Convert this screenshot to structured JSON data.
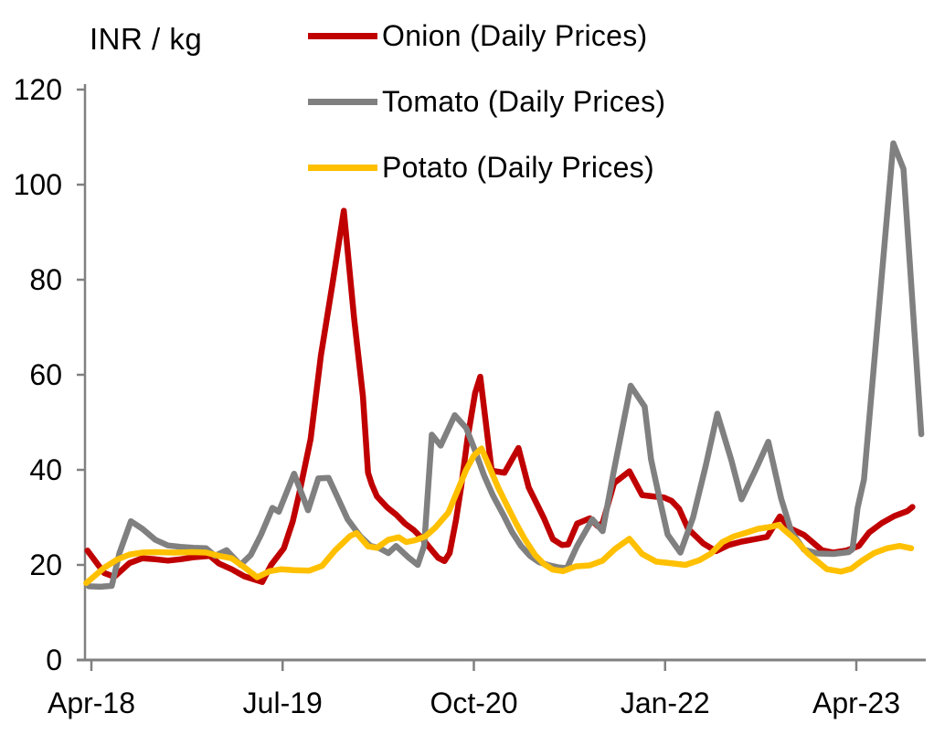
{
  "chart": {
    "y_axis_title": "INR / kg"
  },
  "chart_data": {
    "type": "line",
    "title": "",
    "xlabel": "",
    "ylabel": "INR / kg",
    "ylim": [
      0,
      120
    ],
    "grid": false,
    "legend_position": "top-center",
    "x_axis": {
      "unit": "months since Apr-2018",
      "ticks": [
        {
          "label": "Apr-18",
          "month": 0
        },
        {
          "label": "Jul-19",
          "month": 15
        },
        {
          "label": "Oct-20",
          "month": 30
        },
        {
          "label": "Jan-22",
          "month": 45
        },
        {
          "label": "Apr-23",
          "month": 60
        }
      ]
    },
    "y_axis": {
      "min": 0,
      "max": 120,
      "step": 20,
      "ticks": [
        0,
        20,
        40,
        60,
        80,
        100,
        120
      ]
    },
    "series": [
      {
        "key": "onion",
        "name": "Onion (Daily Prices)",
        "color": "#C00000",
        "points": [
          [
            -0.3,
            23
          ],
          [
            1,
            18.3
          ],
          [
            1.8,
            17.5
          ],
          [
            3,
            20.4
          ],
          [
            4,
            21.4
          ],
          [
            5,
            21.2
          ],
          [
            6,
            20.9
          ],
          [
            7,
            21.2
          ],
          [
            8,
            21.6
          ],
          [
            9.3,
            21.9
          ],
          [
            10,
            20.3
          ],
          [
            11,
            19.1
          ],
          [
            12,
            17.6
          ],
          [
            13.4,
            16.4
          ],
          [
            14.1,
            20
          ],
          [
            15.1,
            23.5
          ],
          [
            15.8,
            29.2
          ],
          [
            16.3,
            35
          ],
          [
            17.2,
            46.5
          ],
          [
            18,
            64
          ],
          [
            18.9,
            79
          ],
          [
            19.8,
            94.5
          ],
          [
            20.6,
            72
          ],
          [
            21.3,
            55.5
          ],
          [
            21.7,
            39.4
          ],
          [
            22,
            36.9
          ],
          [
            22.4,
            34.4
          ],
          [
            23.2,
            32.1
          ],
          [
            23.9,
            30.6
          ],
          [
            24.6,
            28.7
          ],
          [
            25.3,
            27.3
          ],
          [
            26,
            25.4
          ],
          [
            26.7,
            23.1
          ],
          [
            27.2,
            21.5
          ],
          [
            27.7,
            20.8
          ],
          [
            28.1,
            22.5
          ],
          [
            28.6,
            29.5
          ],
          [
            29,
            36.3
          ],
          [
            29.5,
            46.5
          ],
          [
            30.1,
            56.2
          ],
          [
            30.5,
            59.6
          ],
          [
            31.4,
            39.8
          ],
          [
            32.4,
            39.4
          ],
          [
            33.5,
            44.6
          ],
          [
            34.3,
            36.3
          ],
          [
            35.5,
            29.8
          ],
          [
            36.2,
            25.4
          ],
          [
            36.9,
            24.2
          ],
          [
            37.4,
            24.3
          ],
          [
            38.1,
            28.7
          ],
          [
            39.1,
            29.8
          ],
          [
            39.7,
            28.2
          ],
          [
            40.1,
            28.8
          ],
          [
            41,
            37.2
          ],
          [
            42.2,
            39.7
          ],
          [
            43.2,
            34.7
          ],
          [
            44.1,
            34.4
          ],
          [
            44.9,
            34.2
          ],
          [
            45.5,
            33.5
          ],
          [
            46.1,
            31.8
          ],
          [
            46.8,
            27.6
          ],
          [
            48,
            24.5
          ],
          [
            49,
            22.9
          ],
          [
            50,
            24.2
          ],
          [
            51,
            24.9
          ],
          [
            52,
            25.4
          ],
          [
            53,
            25.9
          ],
          [
            54,
            30.2
          ],
          [
            54.8,
            27.7
          ],
          [
            55.9,
            26.3
          ],
          [
            57.3,
            23.1
          ],
          [
            58.2,
            22.6
          ],
          [
            59.2,
            23
          ],
          [
            60.2,
            24
          ],
          [
            61,
            26.8
          ],
          [
            62,
            28.8
          ],
          [
            63,
            30.3
          ],
          [
            64,
            31.3
          ],
          [
            64.4,
            32.2
          ]
        ]
      },
      {
        "key": "tomato",
        "name": "Tomato (Daily Prices)",
        "color": "#808080",
        "points": [
          [
            -0.2,
            15.5
          ],
          [
            0.7,
            15.4
          ],
          [
            1.6,
            15.6
          ],
          [
            2.2,
            22.5
          ],
          [
            3.1,
            29.2
          ],
          [
            4,
            27.6
          ],
          [
            5,
            25.3
          ],
          [
            6,
            24.1
          ],
          [
            7,
            23.8
          ],
          [
            8,
            23.6
          ],
          [
            9,
            23.5
          ],
          [
            9.7,
            21.9
          ],
          [
            10.6,
            23.1
          ],
          [
            11.7,
            20
          ],
          [
            12.5,
            22.1
          ],
          [
            13.3,
            26.3
          ],
          [
            14.2,
            32
          ],
          [
            14.7,
            31.2
          ],
          [
            15.9,
            39.2
          ],
          [
            17,
            31.5
          ],
          [
            17.8,
            38.2
          ],
          [
            18.6,
            38.3
          ],
          [
            19.4,
            33.7
          ],
          [
            20.1,
            29.6
          ],
          [
            21.1,
            26
          ],
          [
            21.9,
            24
          ],
          [
            22.6,
            23.5
          ],
          [
            23.3,
            22.5
          ],
          [
            23.9,
            24
          ],
          [
            24.9,
            21.5
          ],
          [
            25.6,
            20
          ],
          [
            26.1,
            24
          ],
          [
            26.7,
            47.4
          ],
          [
            27.4,
            45.1
          ],
          [
            28.5,
            51.5
          ],
          [
            29.4,
            48.8
          ],
          [
            30.1,
            44
          ],
          [
            30.8,
            38.8
          ],
          [
            31.5,
            34.6
          ],
          [
            32.3,
            30.6
          ],
          [
            33,
            26.9
          ],
          [
            33.7,
            24
          ],
          [
            34.4,
            21.9
          ],
          [
            35.1,
            20.6
          ],
          [
            35.8,
            20
          ],
          [
            36.6,
            19.5
          ],
          [
            37.3,
            19.3
          ],
          [
            38.1,
            24
          ],
          [
            39.3,
            29.6
          ],
          [
            40.1,
            27.1
          ],
          [
            41,
            40
          ],
          [
            42.3,
            57.7
          ],
          [
            43.4,
            53.3
          ],
          [
            43.9,
            42.2
          ],
          [
            44.6,
            33.5
          ],
          [
            45.2,
            26.4
          ],
          [
            46.2,
            22.6
          ],
          [
            47.2,
            30
          ],
          [
            48.2,
            41
          ],
          [
            49.1,
            51.8
          ],
          [
            50.2,
            42
          ],
          [
            51,
            33.8
          ],
          [
            52.1,
            40
          ],
          [
            53.1,
            45.9
          ],
          [
            54.1,
            34
          ],
          [
            54.9,
            27
          ],
          [
            55.9,
            23.2
          ],
          [
            57,
            22.4
          ],
          [
            58.2,
            22.3
          ],
          [
            59.4,
            22.7
          ],
          [
            59.7,
            23.3
          ],
          [
            60.1,
            32
          ],
          [
            60.6,
            38
          ],
          [
            62.9,
            108.7
          ],
          [
            63.7,
            103.3
          ],
          [
            65.1,
            47.5
          ]
        ]
      },
      {
        "key": "potato",
        "name": "Potato (Daily Prices)",
        "color": "#FFC000",
        "points": [
          [
            -0.4,
            16.2
          ],
          [
            1,
            19.4
          ],
          [
            2,
            21.1
          ],
          [
            3,
            22.2
          ],
          [
            4,
            22.6
          ],
          [
            5,
            22.7
          ],
          [
            6.5,
            22.6
          ],
          [
            8,
            22.7
          ],
          [
            9,
            22.6
          ],
          [
            10,
            21.9
          ],
          [
            11,
            21.4
          ],
          [
            12,
            19.5
          ],
          [
            13,
            17.4
          ],
          [
            14,
            18.7
          ],
          [
            14.9,
            19.1
          ],
          [
            15.9,
            18.9
          ],
          [
            17.1,
            18.8
          ],
          [
            18.1,
            19.8
          ],
          [
            19.1,
            23
          ],
          [
            20.3,
            26.1
          ],
          [
            20.8,
            26.7
          ],
          [
            21.7,
            23.9
          ],
          [
            22.4,
            23.6
          ],
          [
            23.3,
            25.3
          ],
          [
            24.1,
            25.8
          ],
          [
            24.7,
            24.8
          ],
          [
            25.4,
            25.2
          ],
          [
            26.2,
            26
          ],
          [
            27,
            27.9
          ],
          [
            28,
            31
          ],
          [
            28.7,
            35.5
          ],
          [
            29.4,
            40
          ],
          [
            30,
            43
          ],
          [
            30.6,
            44.5
          ],
          [
            31.9,
            36.3
          ],
          [
            32.6,
            32.5
          ],
          [
            33.3,
            28.8
          ],
          [
            34,
            25.4
          ],
          [
            34.8,
            22.1
          ],
          [
            35.5,
            20.2
          ],
          [
            36.2,
            19
          ],
          [
            37,
            18.7
          ],
          [
            38,
            19.7
          ],
          [
            39.1,
            19.9
          ],
          [
            40.1,
            20.9
          ],
          [
            41.1,
            23.4
          ],
          [
            42.2,
            25.5
          ],
          [
            43.2,
            22.3
          ],
          [
            44.3,
            20.7
          ],
          [
            45.3,
            20.4
          ],
          [
            46.6,
            20
          ],
          [
            47.7,
            21
          ],
          [
            48.6,
            22.4
          ],
          [
            49.5,
            24.8
          ],
          [
            50.4,
            26
          ],
          [
            51.4,
            26.8
          ],
          [
            52.3,
            27.6
          ],
          [
            53.3,
            28
          ],
          [
            53.9,
            28.4
          ],
          [
            55.2,
            25.4
          ],
          [
            56.2,
            22.4
          ],
          [
            57.7,
            19.1
          ],
          [
            58.8,
            18.6
          ],
          [
            59.6,
            19.2
          ],
          [
            60.4,
            20.8
          ],
          [
            61.4,
            22.5
          ],
          [
            62.4,
            23.5
          ],
          [
            63.4,
            24
          ],
          [
            64.3,
            23.5
          ]
        ]
      }
    ],
    "style": {
      "axis_color": "#808080",
      "text_color": "#000000",
      "line_width": 6.5
    }
  }
}
